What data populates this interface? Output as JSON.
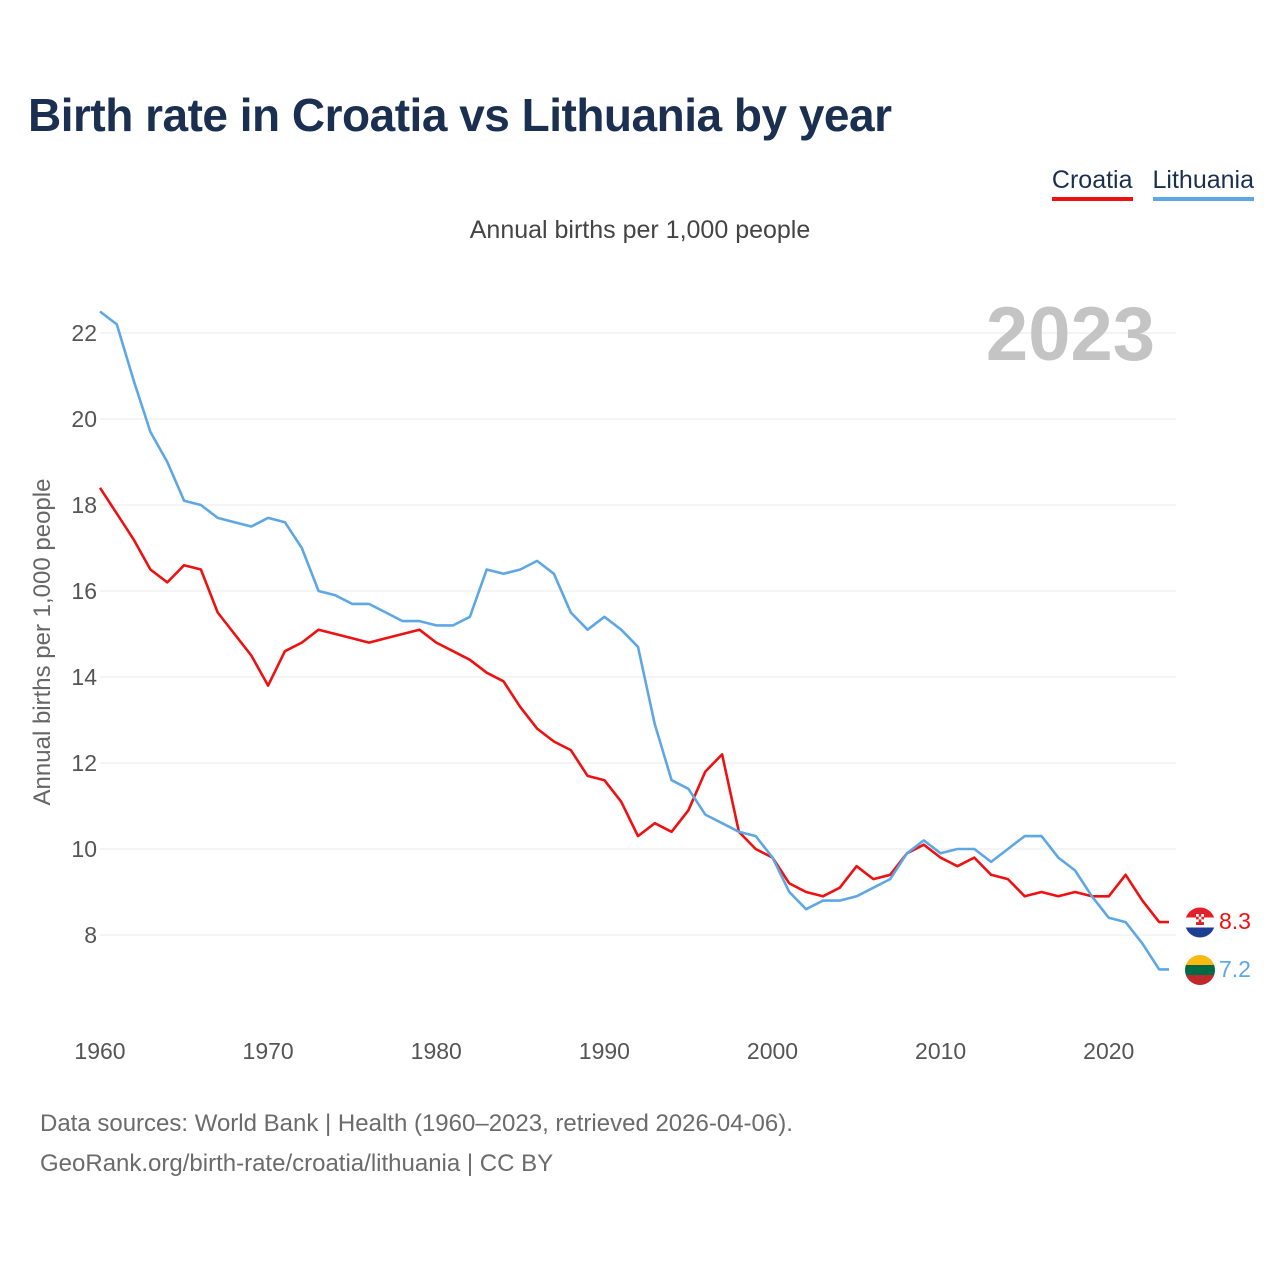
{
  "title": "Birth rate in Croatia vs Lithuania by year",
  "subtitle": "Annual births per 1,000 people",
  "year_overlay": "2023",
  "colors": {
    "croatia": "#ee1111",
    "lithuania": "#5ea7e5",
    "title": "#1b3050",
    "grid": "#e8e8e8"
  },
  "legend": [
    {
      "label": "Croatia",
      "color": "#ee1111"
    },
    {
      "label": "Lithuania",
      "color": "#5ea7e5"
    }
  ],
  "chart_data": {
    "type": "line",
    "title": "Birth rate in Croatia vs Lithuania by year",
    "subtitle": "Annual births per 1,000 people",
    "xlabel": "",
    "ylabel": "Annual births per 1,000 people",
    "xlim": [
      1960,
      2024
    ],
    "ylim": [
      6,
      23
    ],
    "xticks": [
      1960,
      1970,
      1980,
      1990,
      2000,
      2010,
      2020
    ],
    "yticks": [
      8,
      10,
      12,
      14,
      16,
      18,
      20,
      22
    ],
    "grid": true,
    "x": [
      1960,
      1961,
      1962,
      1963,
      1964,
      1965,
      1966,
      1967,
      1968,
      1969,
      1970,
      1971,
      1972,
      1973,
      1974,
      1975,
      1976,
      1977,
      1978,
      1979,
      1980,
      1981,
      1982,
      1983,
      1984,
      1985,
      1986,
      1987,
      1988,
      1989,
      1990,
      1991,
      1992,
      1993,
      1994,
      1995,
      1996,
      1997,
      1998,
      1999,
      2000,
      2001,
      2002,
      2003,
      2004,
      2005,
      2006,
      2007,
      2008,
      2009,
      2010,
      2011,
      2012,
      2013,
      2014,
      2015,
      2016,
      2017,
      2018,
      2019,
      2020,
      2021,
      2022,
      2023
    ],
    "series": [
      {
        "name": "Croatia",
        "color": "#ee1111",
        "end_label": "8.3",
        "flag": "croatia-flag",
        "values": [
          18.4,
          17.8,
          17.2,
          16.5,
          16.2,
          16.6,
          16.5,
          15.5,
          15.0,
          14.5,
          13.8,
          14.6,
          14.8,
          15.1,
          15.0,
          14.9,
          14.8,
          14.9,
          15.0,
          15.1,
          14.8,
          14.6,
          14.4,
          14.1,
          13.9,
          13.3,
          12.8,
          12.5,
          12.3,
          11.7,
          11.6,
          11.1,
          10.3,
          10.6,
          10.4,
          10.9,
          11.8,
          12.2,
          10.4,
          10.0,
          9.8,
          9.2,
          9.0,
          8.9,
          9.1,
          9.6,
          9.3,
          9.4,
          9.9,
          10.1,
          9.8,
          9.6,
          9.8,
          9.4,
          9.3,
          8.9,
          9.0,
          8.9,
          9.0,
          8.9,
          8.9,
          9.4,
          8.8,
          8.3
        ]
      },
      {
        "name": "Lithuania",
        "color": "#5ea7e5",
        "end_label": "7.2",
        "flag": "lithuania-flag",
        "values": [
          22.5,
          22.2,
          20.9,
          19.7,
          19.0,
          18.1,
          18.0,
          17.7,
          17.6,
          17.5,
          17.7,
          17.6,
          17.0,
          16.0,
          15.9,
          15.7,
          15.7,
          15.5,
          15.3,
          15.3,
          15.2,
          15.2,
          15.4,
          16.5,
          16.4,
          16.5,
          16.7,
          16.4,
          15.5,
          15.1,
          15.4,
          15.1,
          14.7,
          12.9,
          11.6,
          11.4,
          10.8,
          10.6,
          10.4,
          10.3,
          9.8,
          9.0,
          8.6,
          8.8,
          8.8,
          8.9,
          9.1,
          9.3,
          9.9,
          10.2,
          9.9,
          10.0,
          10.0,
          9.7,
          10.0,
          10.3,
          10.3,
          9.8,
          9.5,
          8.9,
          8.4,
          8.3,
          7.8,
          7.2
        ]
      }
    ]
  },
  "source": {
    "line1": "Data sources: World Bank | Health (1960–2023, retrieved 2026-04-06).",
    "line2": "GeoRank.org/birth-rate/croatia/lithuania | CC BY"
  }
}
